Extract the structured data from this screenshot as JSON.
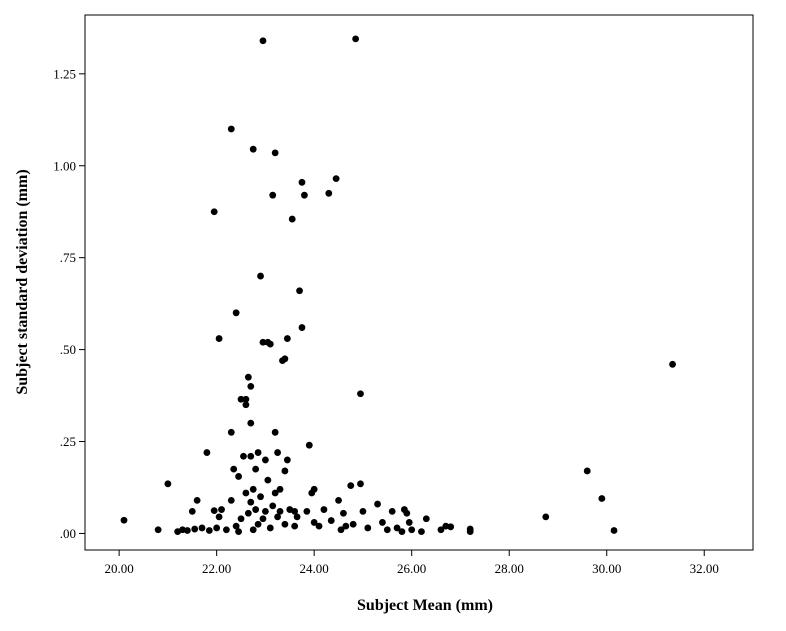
{
  "chart_data": {
    "type": "scatter",
    "title": "",
    "xlabel": "Subject Mean (mm)",
    "ylabel": "Subject standard deviation (mm)",
    "xlim": [
      19.3,
      33.0
    ],
    "ylim": [
      -0.045,
      1.41
    ],
    "x_ticks": [
      20,
      22,
      24,
      26,
      28,
      30,
      32
    ],
    "x_tick_labels": [
      "20.00",
      "22.00",
      "24.00",
      "26.00",
      "28.00",
      "30.00",
      "32.00"
    ],
    "y_ticks": [
      0,
      0.25,
      0.5,
      0.75,
      1.0,
      1.25
    ],
    "y_tick_labels": [
      ".00",
      ".25",
      ".50",
      ".75",
      "1.00",
      "1.25"
    ],
    "grid": false,
    "legend": "none",
    "colors": {
      "marker": "#000000",
      "frame": "#000000",
      "background": "#ffffff"
    },
    "series": [
      {
        "points": [
          [
            20.1,
            0.036
          ],
          [
            20.8,
            0.01
          ],
          [
            21.0,
            0.135
          ],
          [
            21.2,
            0.005
          ],
          [
            21.3,
            0.01
          ],
          [
            21.4,
            0.008
          ],
          [
            21.5,
            0.06
          ],
          [
            21.55,
            0.012
          ],
          [
            21.6,
            0.09
          ],
          [
            21.7,
            0.015
          ],
          [
            21.8,
            0.22
          ],
          [
            21.85,
            0.008
          ],
          [
            21.95,
            0.875
          ],
          [
            21.95,
            0.062
          ],
          [
            22.0,
            0.015
          ],
          [
            22.05,
            0.53
          ],
          [
            22.05,
            0.045
          ],
          [
            22.1,
            0.065
          ],
          [
            22.2,
            0.01
          ],
          [
            22.3,
            0.09
          ],
          [
            22.3,
            0.275
          ],
          [
            22.3,
            1.1
          ],
          [
            22.35,
            0.175
          ],
          [
            22.4,
            0.6
          ],
          [
            22.4,
            0.02
          ],
          [
            22.45,
            0.155
          ],
          [
            22.45,
            0.005
          ],
          [
            22.5,
            0.365
          ],
          [
            22.5,
            0.04
          ],
          [
            22.55,
            0.21
          ],
          [
            22.6,
            0.35
          ],
          [
            22.6,
            0.365
          ],
          [
            22.6,
            0.11
          ],
          [
            22.65,
            0.425
          ],
          [
            22.65,
            0.055
          ],
          [
            22.7,
            0.3
          ],
          [
            22.7,
            0.4
          ],
          [
            22.7,
            0.085
          ],
          [
            22.7,
            0.21
          ],
          [
            22.75,
            1.045
          ],
          [
            22.75,
            0.12
          ],
          [
            22.75,
            0.01
          ],
          [
            22.8,
            0.175
          ],
          [
            22.8,
            0.065
          ],
          [
            22.85,
            0.22
          ],
          [
            22.85,
            0.025
          ],
          [
            22.9,
            0.7
          ],
          [
            22.9,
            0.1
          ],
          [
            22.95,
            0.52
          ],
          [
            22.95,
            1.34
          ],
          [
            22.95,
            0.04
          ],
          [
            23.0,
            0.2
          ],
          [
            23.0,
            0.06
          ],
          [
            23.05,
            0.52
          ],
          [
            23.05,
            0.145
          ],
          [
            23.1,
            0.515
          ],
          [
            23.1,
            0.015
          ],
          [
            23.15,
            0.92
          ],
          [
            23.15,
            0.075
          ],
          [
            23.2,
            1.035
          ],
          [
            23.2,
            0.275
          ],
          [
            23.2,
            0.11
          ],
          [
            23.25,
            0.22
          ],
          [
            23.25,
            0.045
          ],
          [
            23.3,
            0.06
          ],
          [
            23.3,
            0.12
          ],
          [
            23.35,
            0.47
          ],
          [
            23.4,
            0.475
          ],
          [
            23.4,
            0.17
          ],
          [
            23.4,
            0.025
          ],
          [
            23.45,
            0.53
          ],
          [
            23.45,
            0.2
          ],
          [
            23.5,
            0.065
          ],
          [
            23.55,
            0.855
          ],
          [
            23.6,
            0.06
          ],
          [
            23.6,
            0.02
          ],
          [
            23.65,
            0.045
          ],
          [
            23.7,
            0.66
          ],
          [
            23.75,
            0.56
          ],
          [
            23.75,
            0.955
          ],
          [
            23.8,
            0.92
          ],
          [
            23.85,
            0.06
          ],
          [
            23.9,
            0.24
          ],
          [
            23.95,
            0.11
          ],
          [
            24.0,
            0.12
          ],
          [
            24.0,
            0.03
          ],
          [
            24.1,
            0.02
          ],
          [
            24.2,
            0.065
          ],
          [
            24.3,
            0.925
          ],
          [
            24.35,
            0.035
          ],
          [
            24.45,
            0.965
          ],
          [
            24.5,
            0.09
          ],
          [
            24.55,
            0.01
          ],
          [
            24.6,
            0.055
          ],
          [
            24.65,
            0.02
          ],
          [
            24.75,
            0.13
          ],
          [
            24.8,
            0.025
          ],
          [
            24.85,
            1.345
          ],
          [
            24.95,
            0.38
          ],
          [
            24.95,
            0.135
          ],
          [
            25.0,
            0.06
          ],
          [
            25.1,
            0.015
          ],
          [
            25.3,
            0.08
          ],
          [
            25.4,
            0.03
          ],
          [
            25.5,
            0.01
          ],
          [
            25.6,
            0.06
          ],
          [
            25.7,
            0.015
          ],
          [
            25.8,
            0.005
          ],
          [
            25.85,
            0.065
          ],
          [
            25.9,
            0.055
          ],
          [
            25.95,
            0.03
          ],
          [
            26.0,
            0.01
          ],
          [
            26.2,
            0.005
          ],
          [
            26.3,
            0.04
          ],
          [
            26.6,
            0.01
          ],
          [
            26.7,
            0.02
          ],
          [
            26.8,
            0.018
          ],
          [
            27.2,
            0.012
          ],
          [
            27.2,
            0.005
          ],
          [
            28.75,
            0.045
          ],
          [
            29.6,
            0.17
          ],
          [
            29.9,
            0.095
          ],
          [
            30.15,
            0.008
          ],
          [
            31.35,
            0.46
          ]
        ]
      }
    ]
  }
}
